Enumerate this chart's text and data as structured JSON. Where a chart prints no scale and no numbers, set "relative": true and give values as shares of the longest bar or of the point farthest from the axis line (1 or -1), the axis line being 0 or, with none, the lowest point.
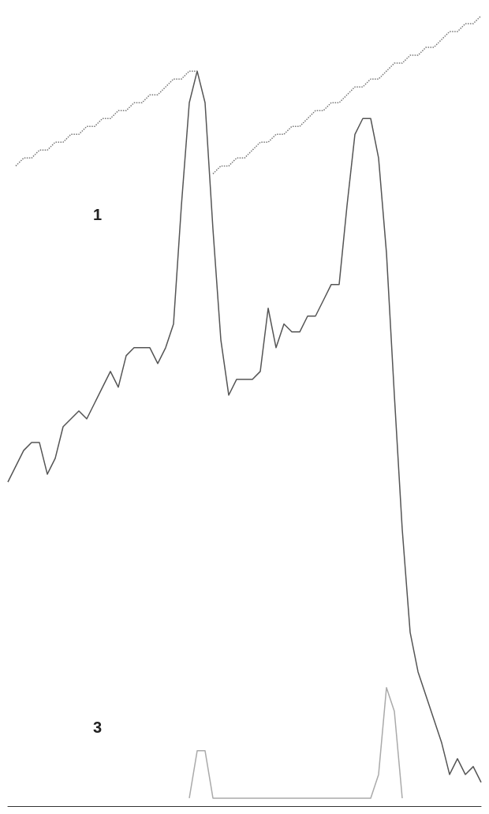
{
  "chart_data": {
    "type": "line",
    "relative": true,
    "categories": [
      null,
      null,
      null,
      null,
      null,
      null,
      null,
      null,
      null,
      null,
      null,
      null,
      null,
      null,
      null,
      null,
      null,
      null,
      null,
      null,
      null,
      null,
      null,
      null,
      null,
      null,
      null,
      null,
      null,
      null,
      null,
      null,
      null,
      null,
      null,
      null,
      null,
      null,
      null,
      null,
      null,
      null,
      null,
      null,
      null,
      null,
      null,
      null,
      null,
      null,
      null,
      null,
      null,
      null,
      null,
      null,
      null,
      null,
      null,
      null,
      null
    ],
    "series": [
      {
        "color": "#555555",
        "line_style": "solid",
        "values": [
          0.41,
          0.43,
          0.45,
          0.46,
          0.46,
          0.42,
          0.44,
          0.48,
          0.49,
          0.5,
          0.49,
          0.51,
          0.53,
          0.55,
          0.53,
          0.57,
          0.58,
          0.58,
          0.58,
          0.56,
          0.58,
          0.61,
          0.76,
          0.89,
          0.93,
          0.89,
          0.73,
          0.59,
          0.52,
          0.54,
          0.54,
          0.54,
          0.55,
          0.63,
          0.58,
          0.61,
          0.6,
          0.6,
          0.62,
          0.62,
          0.64,
          0.66,
          0.66,
          0.76,
          0.85,
          0.87,
          0.87,
          0.82,
          0.7,
          0.52,
          0.35,
          0.22,
          0.17,
          0.14,
          0.11,
          0.08,
          0.04,
          0.06,
          0.04,
          0.05,
          0.03
        ]
      },
      {
        "color": "#777777",
        "line_style": "dotted",
        "values": [
          null,
          0.81,
          0.82,
          0.82,
          0.83,
          0.83,
          0.84,
          0.84,
          0.85,
          0.85,
          0.86,
          0.86,
          0.87,
          0.87,
          0.88,
          0.88,
          0.89,
          0.89,
          0.9,
          0.9,
          0.91,
          0.92,
          0.92,
          0.93,
          0.93,
          null,
          0.8,
          0.81,
          0.81,
          0.82,
          0.82,
          0.83,
          0.84,
          0.84,
          0.85,
          0.85,
          0.86,
          0.86,
          0.87,
          0.88,
          0.88,
          0.89,
          0.89,
          0.9,
          0.91,
          0.91,
          0.92,
          0.92,
          0.93,
          0.94,
          0.94,
          0.95,
          0.95,
          0.96,
          0.96,
          0.97,
          0.98,
          0.98,
          0.99,
          0.99,
          1.0
        ]
      },
      {
        "color": "#aaaaaa",
        "line_style": "solid",
        "values": [
          null,
          null,
          null,
          null,
          null,
          null,
          null,
          null,
          null,
          null,
          null,
          null,
          null,
          null,
          null,
          null,
          null,
          null,
          null,
          null,
          null,
          null,
          null,
          0.01,
          0.07,
          0.07,
          0.01,
          0.01,
          0.01,
          0.01,
          0.01,
          0.01,
          0.01,
          0.01,
          0.01,
          0.01,
          0.01,
          0.01,
          0.01,
          0.01,
          0.01,
          0.01,
          0.01,
          0.01,
          0.01,
          0.01,
          0.01,
          0.04,
          0.15,
          0.12,
          0.01,
          null,
          null,
          null,
          null,
          null,
          null,
          null,
          null,
          null,
          null
        ]
      }
    ],
    "annotations": [
      "1",
      "3"
    ],
    "marker": "none"
  }
}
